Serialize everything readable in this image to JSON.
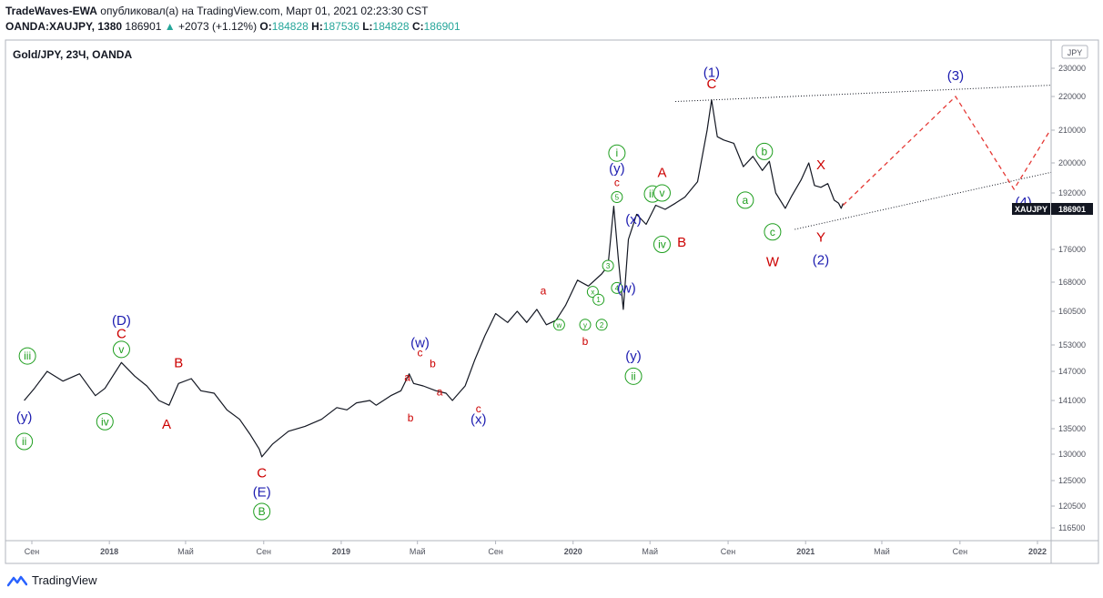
{
  "header": {
    "author": "TradeWaves-EWA",
    "published_text": "опубликовал(а) на TradingView.com, Март 01, 2021 02:23:30 CST",
    "symbol": "OANDA:XAUJPY, 1380",
    "last": "186901",
    "change": "+2073 (+1.12%)",
    "o_label": "O:",
    "o": "184828",
    "h_label": "H:",
    "h": "187536",
    "l_label": "L:",
    "l": "184828",
    "c_label": "C:",
    "c": "186901",
    "up_arrow": "▲"
  },
  "chart_data": {
    "type": "line",
    "title": "Gold/JPY, 23Ч, OANDA",
    "currency": "JPY",
    "price_badge": "XAUJPY",
    "price_badge_value": "186901",
    "y_ticks": [
      230000,
      220000,
      210000,
      200000,
      192000,
      184000,
      176000,
      168000,
      160500,
      153000,
      147000,
      141000,
      135000,
      130000,
      125000,
      120500,
      116500
    ],
    "x_ticks": [
      "Сен",
      "2018",
      "Май",
      "Сен",
      "2019",
      "Май",
      "Сен",
      "2020",
      "Май",
      "Сен",
      "2021",
      "Май",
      "Сен",
      "2022"
    ],
    "bold_x_ticks": [
      "2018",
      "2019",
      "2020",
      "2021",
      "2022"
    ],
    "price_series": [
      [
        "2017-08-20",
        141000
      ],
      [
        "2017-09-05",
        143500
      ],
      [
        "2017-09-25",
        147000
      ],
      [
        "2017-10-20",
        145000
      ],
      [
        "2017-11-15",
        146500
      ],
      [
        "2017-12-10",
        142000
      ],
      [
        "2017-12-25",
        143500
      ],
      [
        "2018-01-20",
        149000
      ],
      [
        "2018-02-10",
        146000
      ],
      [
        "2018-03-01",
        144000
      ],
      [
        "2018-03-20",
        141000
      ],
      [
        "2018-04-05",
        140000
      ],
      [
        "2018-04-20",
        144500
      ],
      [
        "2018-05-10",
        145500
      ],
      [
        "2018-05-25",
        143000
      ],
      [
        "2018-06-15",
        142500
      ],
      [
        "2018-07-05",
        139000
      ],
      [
        "2018-07-25",
        137000
      ],
      [
        "2018-08-10",
        134000
      ],
      [
        "2018-08-25",
        131000
      ],
      [
        "2018-08-29",
        129500
      ],
      [
        "2018-09-15",
        132000
      ],
      [
        "2018-10-10",
        134500
      ],
      [
        "2018-11-05",
        135500
      ],
      [
        "2018-12-01",
        137000
      ],
      [
        "2018-12-25",
        139500
      ],
      [
        "2019-01-10",
        139000
      ],
      [
        "2019-01-25",
        140500
      ],
      [
        "2019-02-15",
        141000
      ],
      [
        "2019-02-25",
        140000
      ],
      [
        "2019-03-20",
        142000
      ],
      [
        "2019-04-05",
        143000
      ],
      [
        "2019-04-18",
        146500
      ],
      [
        "2019-04-25",
        144500
      ],
      [
        "2019-05-10",
        144000
      ],
      [
        "2019-05-30",
        143000
      ],
      [
        "2019-06-15",
        142500
      ],
      [
        "2019-06-25",
        141000
      ],
      [
        "2019-07-15",
        144000
      ],
      [
        "2019-07-30",
        149500
      ],
      [
        "2019-08-15",
        155000
      ],
      [
        "2019-09-01",
        160000
      ],
      [
        "2019-09-20",
        158000
      ],
      [
        "2019-10-05",
        160500
      ],
      [
        "2019-10-20",
        158000
      ],
      [
        "2019-11-05",
        161000
      ],
      [
        "2019-11-20",
        157500
      ],
      [
        "2019-12-05",
        158500
      ],
      [
        "2019-12-20",
        162000
      ],
      [
        "2020-01-08",
        168500
      ],
      [
        "2020-01-25",
        167000
      ],
      [
        "2020-02-15",
        170000
      ],
      [
        "2020-02-25",
        172000
      ],
      [
        "2020-03-05",
        185500
      ],
      [
        "2020-03-12",
        174000
      ],
      [
        "2020-03-20",
        161000
      ],
      [
        "2020-03-28",
        178000
      ],
      [
        "2020-04-10",
        183000
      ],
      [
        "2020-04-25",
        181000
      ],
      [
        "2020-05-10",
        186000
      ],
      [
        "2020-05-25",
        184000
      ],
      [
        "2020-06-10",
        187000
      ],
      [
        "2020-06-25",
        190000
      ],
      [
        "2020-07-15",
        195000
      ],
      [
        "2020-07-30",
        210000
      ],
      [
        "2020-08-06",
        219000
      ],
      [
        "2020-08-15",
        208000
      ],
      [
        "2020-08-25",
        207000
      ],
      [
        "2020-09-10",
        206000
      ],
      [
        "2020-09-25",
        199000
      ],
      [
        "2020-10-10",
        202000
      ],
      [
        "2020-10-25",
        198000
      ],
      [
        "2020-11-05",
        200500
      ],
      [
        "2020-11-15",
        192000
      ],
      [
        "2020-11-30",
        184500
      ],
      [
        "2020-12-10",
        190500
      ],
      [
        "2020-12-25",
        195500
      ],
      [
        "2021-01-06",
        200000
      ],
      [
        "2021-01-15",
        194000
      ],
      [
        "2021-01-25",
        193500
      ],
      [
        "2021-02-05",
        194500
      ],
      [
        "2021-02-15",
        188500
      ],
      [
        "2021-02-22",
        187000
      ],
      [
        "2021-02-26",
        184500
      ],
      [
        "2021-03-01",
        186901
      ]
    ],
    "wave_labels": [
      {
        "text": "iii",
        "date": "2017-08-25",
        "price": 150500,
        "color": "green",
        "circled": true
      },
      {
        "text": "(y)",
        "date": "2017-08-20",
        "price": 137500,
        "color": "blue"
      },
      {
        "text": "ii",
        "date": "2017-08-20",
        "price": 132500,
        "color": "green",
        "circled": true
      },
      {
        "text": "(D)",
        "date": "2018-01-20",
        "price": 158500,
        "color": "blue"
      },
      {
        "text": "C",
        "date": "2018-01-20",
        "price": 155500,
        "color": "red"
      },
      {
        "text": "v",
        "date": "2018-01-20",
        "price": 152000,
        "color": "green",
        "circled": true
      },
      {
        "text": "iv",
        "date": "2017-12-25",
        "price": 136500,
        "color": "green",
        "circled": true
      },
      {
        "text": "A",
        "date": "2018-04-01",
        "price": 136000,
        "color": "red"
      },
      {
        "text": "B",
        "date": "2018-04-20",
        "price": 149000,
        "color": "red"
      },
      {
        "text": "C",
        "date": "2018-08-29",
        "price": 126500,
        "color": "red"
      },
      {
        "text": "(E)",
        "date": "2018-08-29",
        "price": 123000,
        "color": "blue"
      },
      {
        "text": "B",
        "date": "2018-08-29",
        "price": 119500,
        "color": "green",
        "circled": true
      },
      {
        "text": "(w)",
        "date": "2019-05-05",
        "price": 153500,
        "color": "blue"
      },
      {
        "text": "c",
        "date": "2019-05-05",
        "price": 151500,
        "color": "red",
        "small": true
      },
      {
        "text": "b",
        "date": "2019-05-25",
        "price": 149000,
        "color": "red",
        "small": true
      },
      {
        "text": "a",
        "date": "2019-04-15",
        "price": 146000,
        "color": "red",
        "small": true
      },
      {
        "text": "a",
        "date": "2019-06-05",
        "price": 143000,
        "color": "red",
        "small": true
      },
      {
        "text": "b",
        "date": "2019-04-20",
        "price": 137500,
        "color": "red",
        "small": true
      },
      {
        "text": "c",
        "date": "2019-08-05",
        "price": 139500,
        "color": "red",
        "small": true
      },
      {
        "text": "(x)",
        "date": "2019-08-05",
        "price": 137000,
        "color": "blue"
      },
      {
        "text": "a",
        "date": "2019-11-15",
        "price": 166000,
        "color": "red",
        "small": true
      },
      {
        "text": "x",
        "date": "2020-02-01",
        "price": 165500,
        "color": "green",
        "circled": true,
        "small": true
      },
      {
        "text": "1",
        "date": "2020-02-10",
        "price": 163500,
        "color": "green",
        "circled": true,
        "small": true
      },
      {
        "text": "w",
        "date": "2019-12-10",
        "price": 157500,
        "color": "green",
        "circled": true,
        "small": true
      },
      {
        "text": "y",
        "date": "2020-01-20",
        "price": 157500,
        "color": "green",
        "circled": true,
        "small": true
      },
      {
        "text": "2",
        "date": "2020-02-15",
        "price": 157500,
        "color": "green",
        "circled": true,
        "small": true
      },
      {
        "text": "b",
        "date": "2020-01-20",
        "price": 154000,
        "color": "red",
        "small": true
      },
      {
        "text": "3",
        "date": "2020-02-25",
        "price": 172000,
        "color": "green",
        "circled": true,
        "small": true
      },
      {
        "text": "4",
        "date": "2020-03-10",
        "price": 166500,
        "color": "green",
        "circled": true,
        "small": true
      },
      {
        "text": "(w)",
        "date": "2020-03-25",
        "price": 166500,
        "color": "blue"
      },
      {
        "text": "(x)",
        "date": "2020-04-05",
        "price": 182000,
        "color": "blue"
      },
      {
        "text": "5",
        "date": "2020-03-10",
        "price": 190000,
        "color": "green",
        "circled": true,
        "small": true
      },
      {
        "text": "c",
        "date": "2020-03-10",
        "price": 195000,
        "color": "red",
        "small": true
      },
      {
        "text": "(y)",
        "date": "2020-03-10",
        "price": 198500,
        "color": "blue"
      },
      {
        "text": "i",
        "date": "2020-03-10",
        "price": 203000,
        "color": "green",
        "circled": true
      },
      {
        "text": "(y)",
        "date": "2020-04-05",
        "price": 150500,
        "color": "blue"
      },
      {
        "text": "ii",
        "date": "2020-04-05",
        "price": 146000,
        "color": "green",
        "circled": true
      },
      {
        "text": "iii",
        "date": "2020-05-05",
        "price": 191500,
        "color": "green",
        "circled": true
      },
      {
        "text": "v",
        "date": "2020-05-20",
        "price": 192000,
        "color": "green",
        "circled": true
      },
      {
        "text": "A",
        "date": "2020-05-20",
        "price": 197500,
        "color": "red"
      },
      {
        "text": "iv",
        "date": "2020-05-20",
        "price": 177000,
        "color": "green",
        "circled": true
      },
      {
        "text": "B",
        "date": "2020-06-20",
        "price": 177500,
        "color": "red"
      },
      {
        "text": "(1)",
        "date": "2020-08-06",
        "price": 228500,
        "color": "blue"
      },
      {
        "text": "C",
        "date": "2020-08-06",
        "price": 224500,
        "color": "red"
      },
      {
        "text": "b",
        "date": "2020-10-28",
        "price": 203500,
        "color": "green",
        "circled": true
      },
      {
        "text": "a",
        "date": "2020-09-28",
        "price": 188500,
        "color": "green",
        "circled": true
      },
      {
        "text": "c",
        "date": "2020-11-10",
        "price": 179500,
        "color": "green",
        "circled": true
      },
      {
        "text": "W",
        "date": "2020-11-10",
        "price": 173000,
        "color": "red"
      },
      {
        "text": "X",
        "date": "2021-01-25",
        "price": 199500,
        "color": "red"
      },
      {
        "text": "Y",
        "date": "2021-01-25",
        "price": 178500,
        "color": "red"
      },
      {
        "text": "(2)",
        "date": "2021-01-25",
        "price": 173500,
        "color": "blue"
      },
      {
        "text": "(3)",
        "date": "2021-08-25",
        "price": 227500,
        "color": "blue"
      },
      {
        "text": "(4)",
        "date": "2021-12-10",
        "price": 187500,
        "color": "blue"
      }
    ],
    "projection": [
      [
        "2021-03-01",
        186000
      ],
      [
        "2021-08-25",
        220000
      ],
      [
        "2021-11-25",
        193000
      ],
      [
        "2022-02-20",
        210000
      ]
    ],
    "upper_trendline": [
      [
        "2020-06-10",
        218500
      ],
      [
        "2022-03-01",
        224000
      ]
    ],
    "lower_trendline": [
      [
        "2020-12-15",
        180000
      ],
      [
        "2022-03-01",
        197500
      ]
    ]
  }
}
